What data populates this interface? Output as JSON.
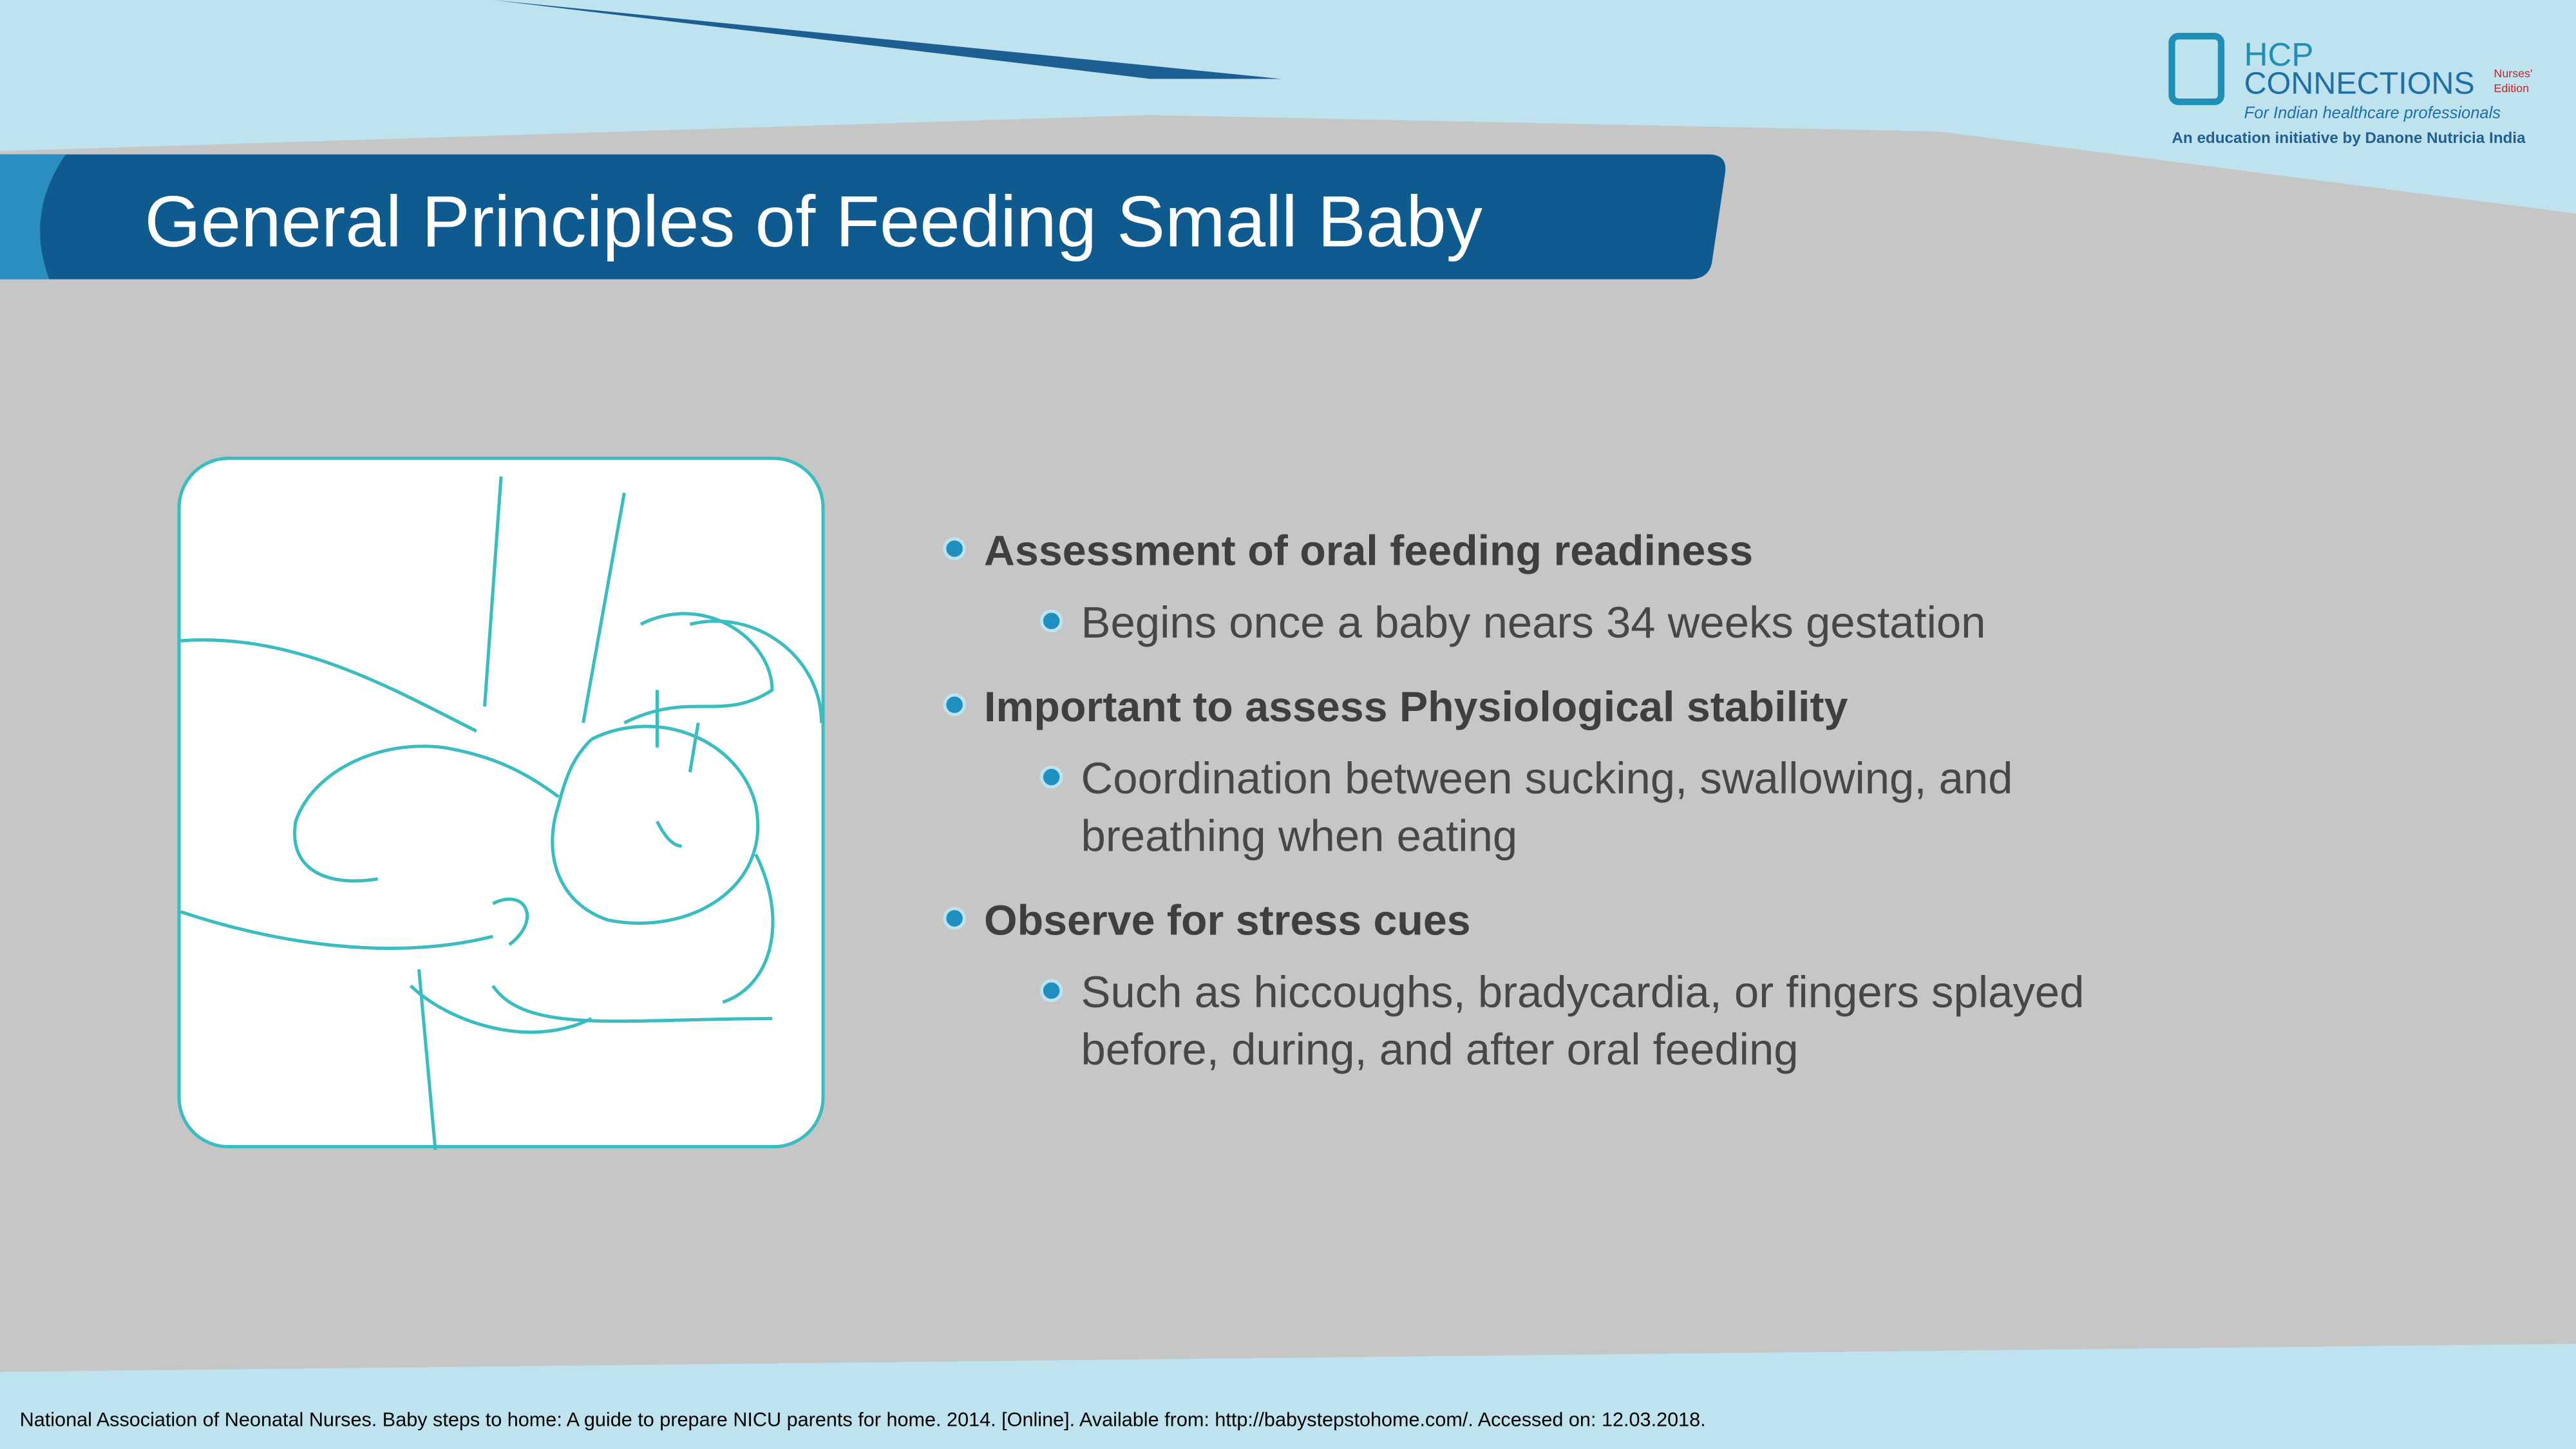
{
  "header": {
    "title": "General Principles of Feeding Small Baby",
    "logo": {
      "brand_top": "HCP",
      "brand_bottom": "CONNECTIONS",
      "edition_top": "Nurses'",
      "edition_bottom": "Edition",
      "tagline": "For Indian healthcare professionals",
      "initiative": "An education initiative by Danone Nutricia India"
    }
  },
  "bullets": [
    {
      "text": "Assessment of oral feeding readiness",
      "sub": [
        {
          "lines": [
            "Begins once a baby nears 34 weeks gestation"
          ]
        }
      ]
    },
    {
      "text": "Important to assess Physiological stability",
      "sub": [
        {
          "lines": [
            "Coordination between sucking, swallowing, and",
            "breathing when eating"
          ]
        }
      ]
    },
    {
      "text": "Observe for stress cues",
      "sub": [
        {
          "lines": [
            "Such as hiccoughs, bradycardia, or fingers splayed",
            "before, during, and after oral feeding"
          ]
        }
      ]
    }
  ],
  "footer": {
    "citation": "National Association of Neonatal Nurses. Baby steps to home: A guide to prepare NICU parents for home. 2014. [Online]. Available from: http://babystepstohome.com/. Accessed on: 12.03.2018."
  }
}
